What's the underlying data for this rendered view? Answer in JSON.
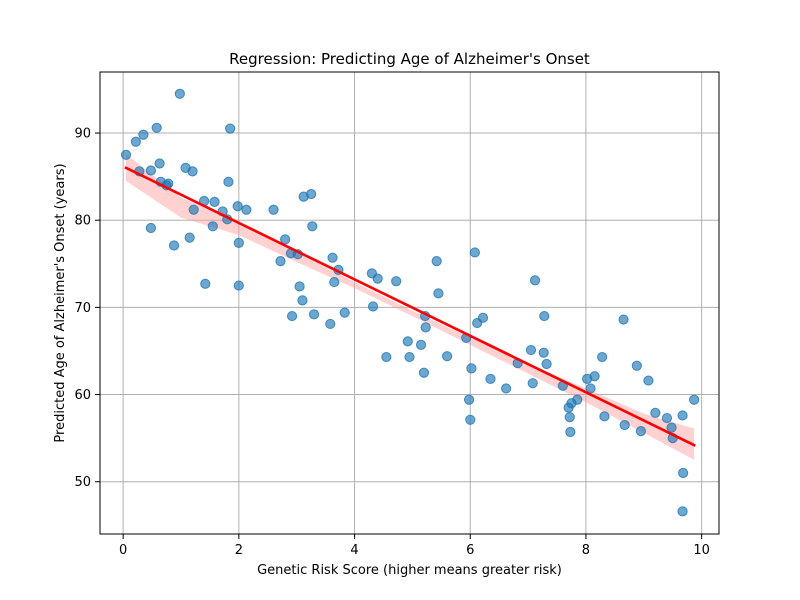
{
  "chart_data": {
    "type": "scatter",
    "title": "Regression: Predicting Age of Alzheimer's Onset",
    "xlabel": "Genetic Risk Score (higher means greater risk)",
    "ylabel": "Predicted Age of Alzheimer's Onset (years)",
    "xlim": [
      -0.4,
      10.3
    ],
    "ylim": [
      44,
      97
    ],
    "xticks": [
      0,
      2,
      4,
      6,
      8,
      10
    ],
    "yticks": [
      50,
      60,
      70,
      80,
      90
    ],
    "grid": true,
    "colors": {
      "points": "#1f77b4",
      "regression_line": "#ff0000",
      "confidence_band": "#ff9999"
    },
    "points": [
      [
        0.05,
        87.5
      ],
      [
        0.22,
        89.0
      ],
      [
        0.28,
        85.6
      ],
      [
        0.35,
        89.8
      ],
      [
        0.48,
        85.7
      ],
      [
        0.48,
        79.1
      ],
      [
        0.58,
        90.6
      ],
      [
        0.63,
        86.5
      ],
      [
        0.65,
        84.4
      ],
      [
        0.75,
        84.0
      ],
      [
        0.78,
        84.2
      ],
      [
        0.88,
        77.1
      ],
      [
        0.98,
        94.5
      ],
      [
        1.08,
        86.0
      ],
      [
        1.15,
        78.0
      ],
      [
        1.2,
        85.6
      ],
      [
        1.22,
        81.2
      ],
      [
        1.4,
        82.2
      ],
      [
        1.42,
        72.7
      ],
      [
        1.55,
        79.3
      ],
      [
        1.58,
        82.1
      ],
      [
        1.72,
        81.0
      ],
      [
        1.8,
        80.1
      ],
      [
        1.82,
        84.4
      ],
      [
        1.85,
        90.5
      ],
      [
        1.98,
        81.6
      ],
      [
        2.0,
        77.4
      ],
      [
        2.0,
        72.5
      ],
      [
        2.13,
        81.2
      ],
      [
        2.6,
        81.2
      ],
      [
        2.72,
        75.3
      ],
      [
        2.8,
        77.8
      ],
      [
        2.9,
        76.2
      ],
      [
        2.92,
        69.0
      ],
      [
        3.02,
        76.1
      ],
      [
        3.05,
        72.4
      ],
      [
        3.1,
        70.8
      ],
      [
        3.12,
        82.7
      ],
      [
        3.25,
        83.0
      ],
      [
        3.27,
        79.3
      ],
      [
        3.3,
        69.2
      ],
      [
        3.58,
        68.1
      ],
      [
        3.62,
        75.7
      ],
      [
        3.65,
        72.9
      ],
      [
        3.72,
        74.3
      ],
      [
        3.83,
        69.4
      ],
      [
        4.3,
        73.9
      ],
      [
        4.32,
        70.1
      ],
      [
        4.4,
        73.3
      ],
      [
        4.55,
        64.3
      ],
      [
        4.72,
        73.0
      ],
      [
        4.92,
        66.1
      ],
      [
        4.95,
        64.3
      ],
      [
        5.15,
        65.7
      ],
      [
        5.2,
        62.5
      ],
      [
        5.22,
        69.0
      ],
      [
        5.23,
        67.7
      ],
      [
        5.42,
        75.3
      ],
      [
        5.45,
        71.6
      ],
      [
        5.6,
        64.4
      ],
      [
        5.93,
        66.5
      ],
      [
        5.98,
        59.4
      ],
      [
        6.0,
        57.1
      ],
      [
        6.02,
        63.0
      ],
      [
        6.08,
        76.3
      ],
      [
        6.12,
        68.2
      ],
      [
        6.22,
        68.8
      ],
      [
        6.35,
        61.8
      ],
      [
        6.62,
        60.7
      ],
      [
        6.82,
        63.6
      ],
      [
        7.05,
        65.1
      ],
      [
        7.08,
        61.3
      ],
      [
        7.12,
        73.1
      ],
      [
        7.27,
        64.8
      ],
      [
        7.28,
        69.0
      ],
      [
        7.32,
        63.5
      ],
      [
        7.6,
        61.0
      ],
      [
        7.7,
        58.5
      ],
      [
        7.72,
        57.4
      ],
      [
        7.73,
        55.7
      ],
      [
        7.75,
        59.0
      ],
      [
        7.85,
        59.4
      ],
      [
        8.02,
        61.8
      ],
      [
        8.08,
        60.7
      ],
      [
        8.15,
        62.1
      ],
      [
        8.28,
        64.3
      ],
      [
        8.32,
        57.5
      ],
      [
        8.65,
        68.6
      ],
      [
        8.67,
        56.5
      ],
      [
        8.88,
        63.3
      ],
      [
        8.95,
        55.8
      ],
      [
        9.08,
        61.6
      ],
      [
        9.2,
        57.9
      ],
      [
        9.4,
        57.3
      ],
      [
        9.48,
        56.2
      ],
      [
        9.5,
        55.0
      ],
      [
        9.67,
        57.6
      ],
      [
        9.67,
        46.6
      ],
      [
        9.68,
        51.0
      ],
      [
        9.87,
        59.4
      ]
    ],
    "regression": {
      "x": [
        0.05,
        9.87
      ],
      "y": [
        86.0,
        54.2
      ]
    },
    "confidence_band": [
      [
        0.05,
        84.5,
        87.6
      ],
      [
        1.0,
        80.3,
        82.6
      ],
      [
        2.0,
        78.3,
        79.7
      ],
      [
        3.0,
        75.2,
        76.3
      ],
      [
        4.0,
        72.2,
        72.9
      ],
      [
        5.0,
        69.0,
        69.6
      ],
      [
        6.0,
        65.7,
        66.5
      ],
      [
        7.0,
        62.4,
        63.5
      ],
      [
        8.0,
        59.1,
        60.7
      ],
      [
        9.0,
        55.6,
        57.8
      ],
      [
        9.87,
        52.5,
        56.1
      ]
    ]
  }
}
